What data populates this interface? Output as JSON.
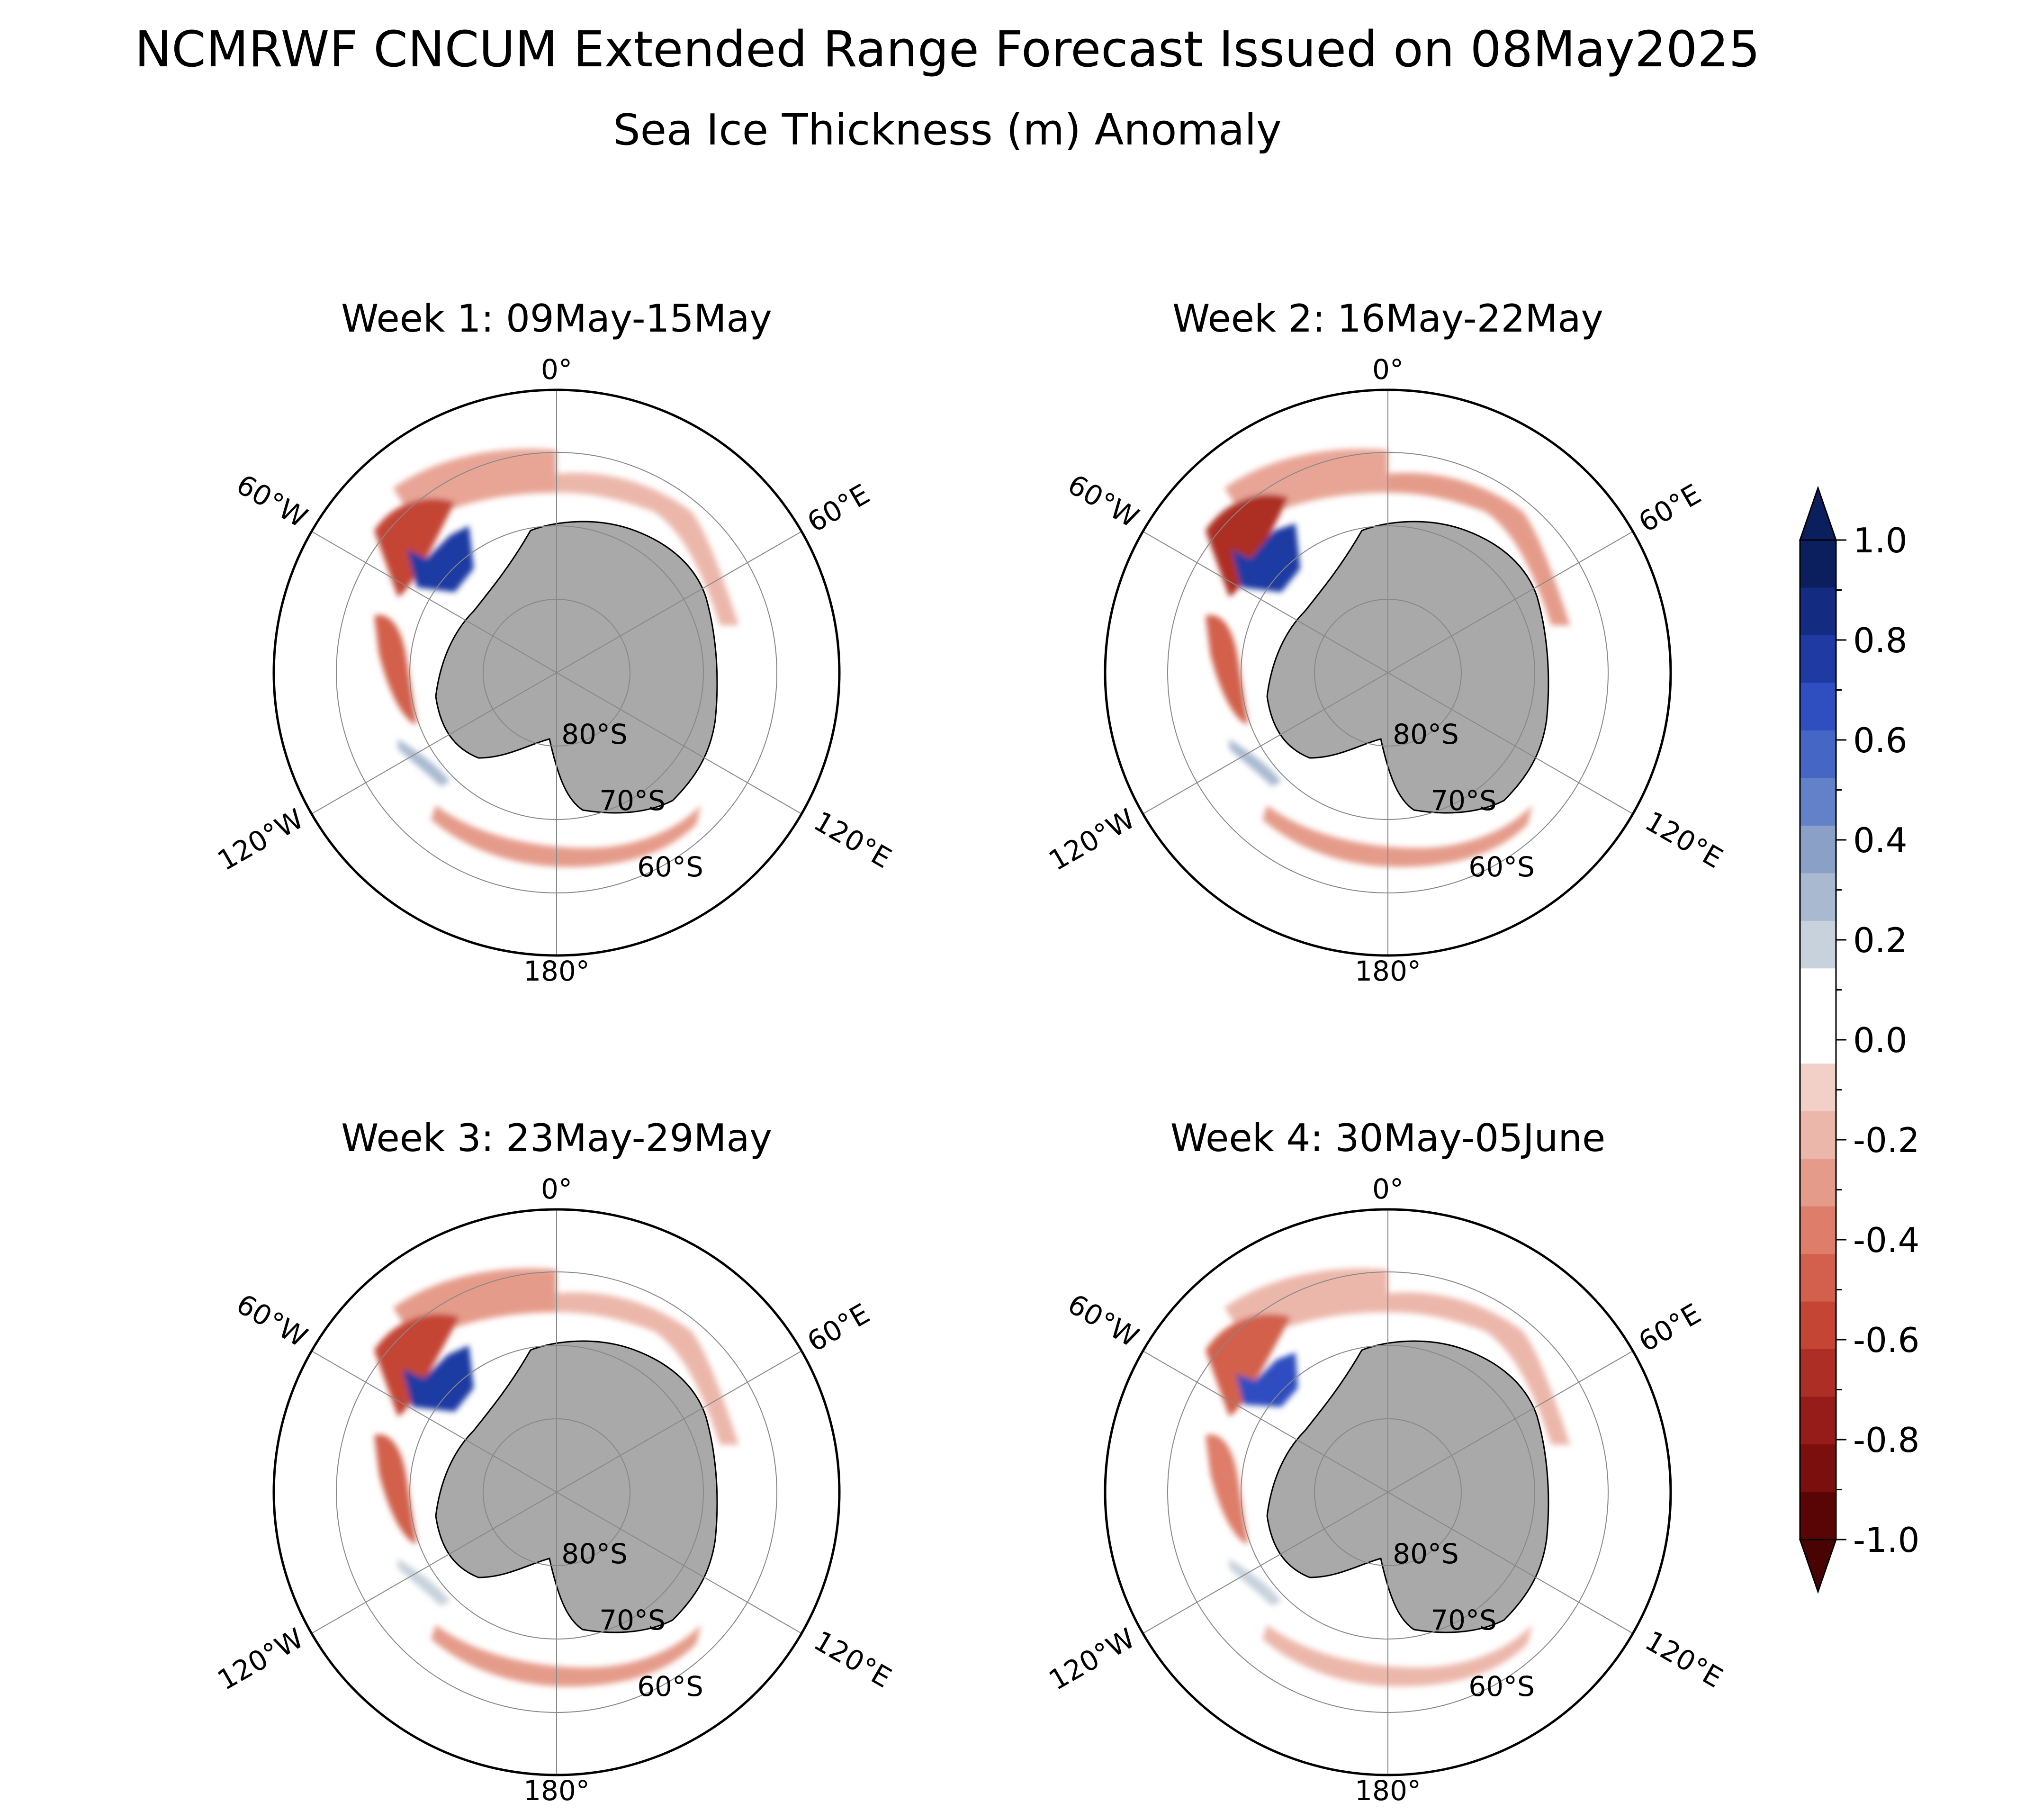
{
  "title": "NCMRWF CNCUM Extended Range Forecast Issued on 08May2025",
  "subtitle": "Sea Ice Thickness (m) Anomaly",
  "panels": [
    {
      "title": "Week 1: 09May-15May",
      "lon_labels": {
        "top": "0°",
        "left": "60°W",
        "right": "60°E",
        "lower_left": "120°W",
        "lower_right": "120°E",
        "bottom": "180°"
      },
      "lat_labels": [
        "80°S",
        "70°S",
        "60°S"
      ]
    },
    {
      "title": "Week 2: 16May-22May",
      "lon_labels": {
        "top": "0°",
        "left": "60°W",
        "right": "60°E",
        "lower_left": "120°W",
        "lower_right": "120°E",
        "bottom": "180°"
      },
      "lat_labels": [
        "80°S",
        "70°S",
        "60°S"
      ]
    },
    {
      "title": "Week 3: 23May-29May",
      "lon_labels": {
        "top": "0°",
        "left": "60°W",
        "right": "60°E",
        "lower_left": "120°W",
        "lower_right": "120°E",
        "bottom": "180°"
      },
      "lat_labels": [
        "80°S",
        "70°S",
        "60°S"
      ]
    },
    {
      "title": "Week 4: 30May-05June",
      "lon_labels": {
        "top": "0°",
        "left": "60°W",
        "right": "60°E",
        "lower_left": "120°W",
        "lower_right": "120°E",
        "bottom": "180°"
      },
      "lat_labels": [
        "80°S",
        "70°S",
        "60°S"
      ]
    }
  ],
  "colorbar": {
    "tick_labels": [
      "1.0",
      "0.8",
      "0.6",
      "0.4",
      "0.2",
      "0.0",
      "-0.2",
      "-0.4",
      "-0.6",
      "-0.8",
      "-1.0"
    ],
    "colors_top_to_bottom": [
      "#0b1e5e",
      "#132b80",
      "#1f3ba3",
      "#2f4ec0",
      "#4666c6",
      "#6381c8",
      "#8aa0c6",
      "#a9bad0",
      "#c7d2dc",
      "#ffffff",
      "#ffffff",
      "#f2d0c8",
      "#ecb7ab",
      "#e59b8a",
      "#de7d69",
      "#d2604c",
      "#c54535",
      "#ad2e24",
      "#951c18",
      "#7a0f0d",
      "#5a0505"
    ],
    "extend_top_color": "#0b1e5e",
    "extend_bottom_color": "#4a0303"
  },
  "colors": {
    "land": "#a9a9a9",
    "grid": "#888888",
    "red_anomaly": "#d9644f",
    "blue_anomaly": "#1f3ba3"
  }
}
